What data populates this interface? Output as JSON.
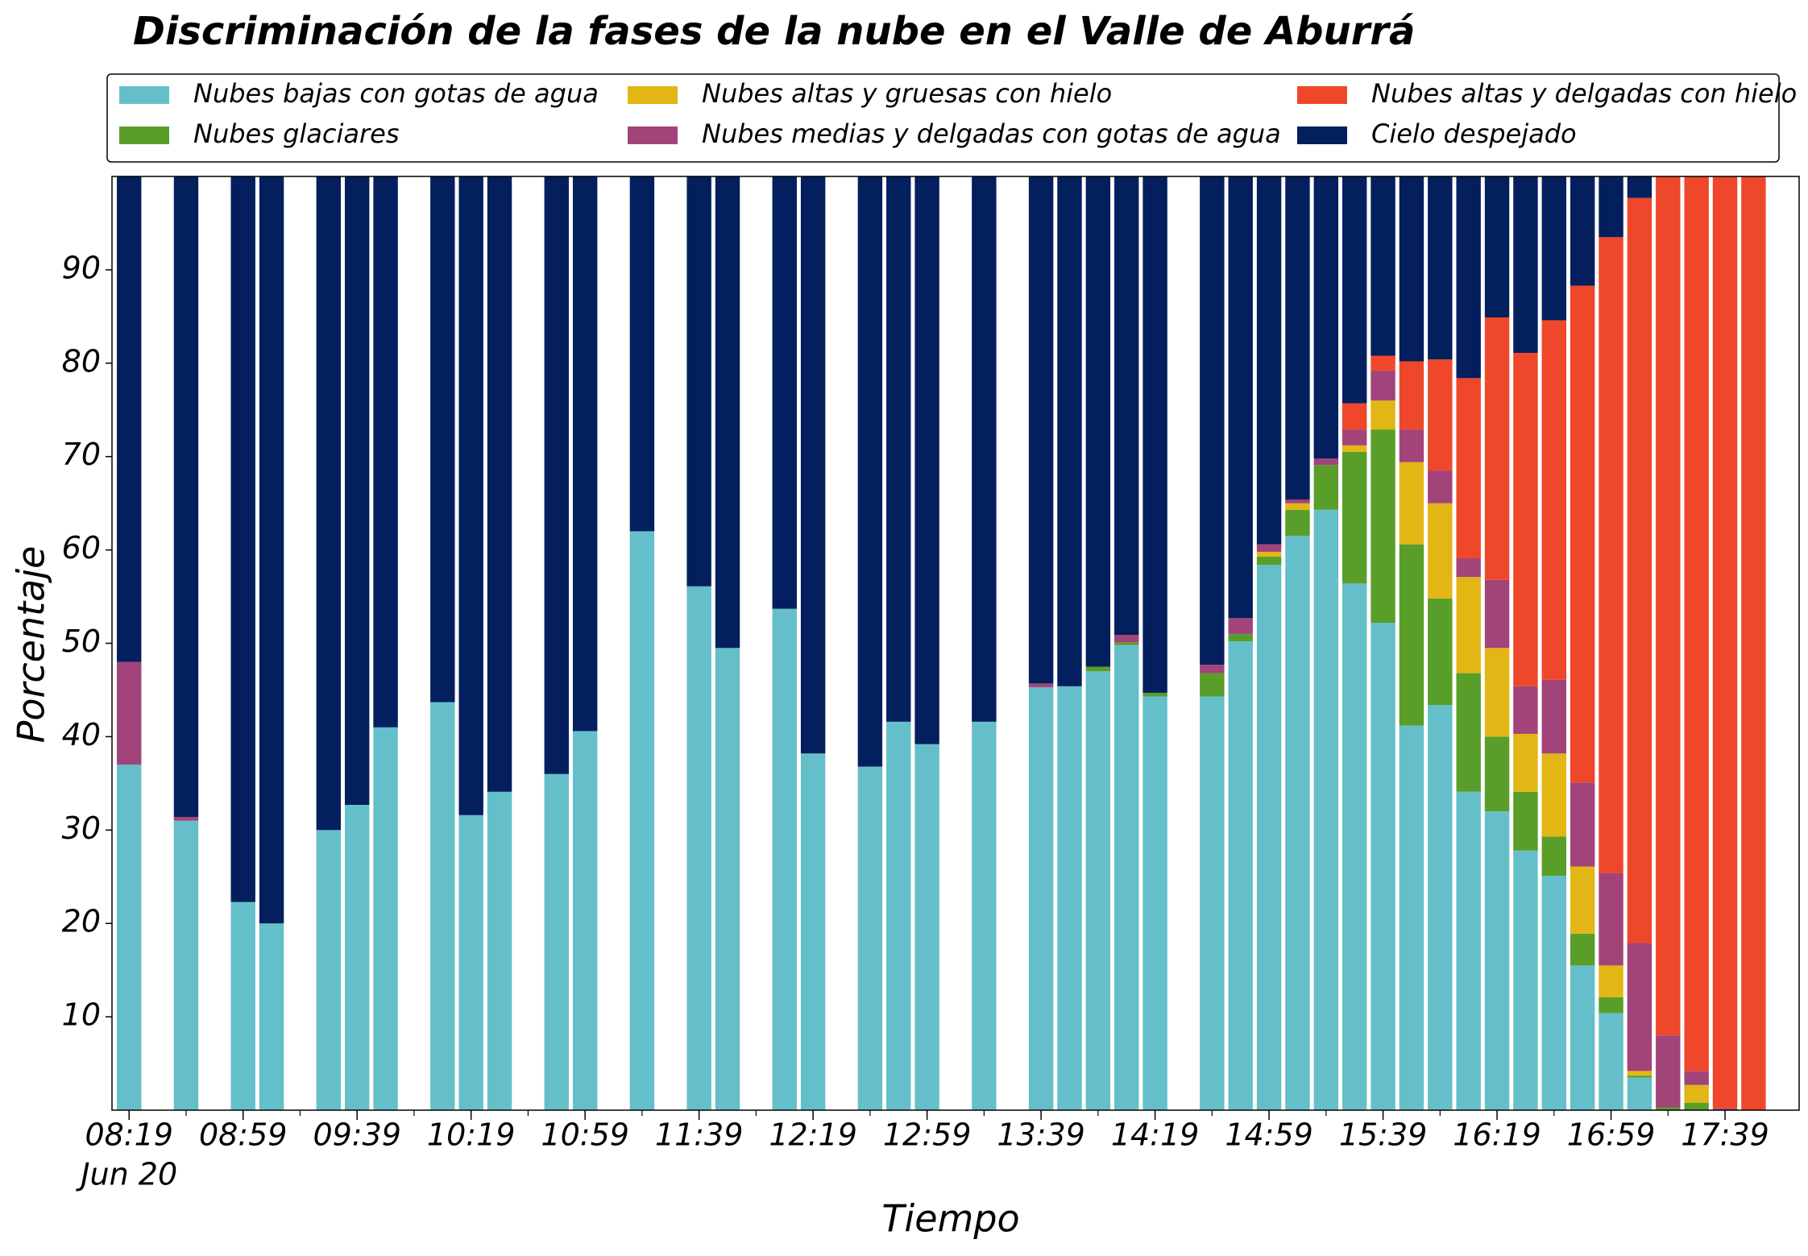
{
  "chart_data": {
    "type": "stacked-bar",
    "title": "Discriminación de la fases de la nube en el Valle de Aburrá",
    "x_label": "Tiempo",
    "y_label": "Porcentaje",
    "x_date_label": "Jun 20",
    "categories": [
      "08:19",
      null,
      null,
      null,
      "08:59",
      null,
      null,
      null,
      "09:39",
      null,
      null,
      null,
      "10:19",
      null,
      null,
      null,
      "10:59",
      null,
      null,
      null,
      "11:39",
      null,
      null,
      null,
      "12:19",
      null,
      null,
      null,
      "12:59",
      null,
      null,
      null,
      "13:39",
      null,
      null,
      null,
      "14:19",
      null,
      null,
      null,
      "14:59",
      null,
      null,
      null,
      "15:39",
      null,
      null,
      null,
      "16:19",
      null,
      null,
      null,
      "16:59",
      null,
      null,
      null,
      "17:39",
      null
    ],
    "ylim": [
      0,
      100
    ],
    "yticks": [
      10,
      20,
      30,
      40,
      50,
      60,
      70,
      80,
      90
    ],
    "legend": "upper center",
    "grid": false,
    "series": [
      {
        "name": "Nubes bajas con gotas de agua",
        "color": "#65bfca",
        "values": [
          37,
          null,
          31,
          null,
          22.3,
          20,
          null,
          30,
          32.7,
          41,
          null,
          43.7,
          31.6,
          34.1,
          null,
          36,
          40.6,
          null,
          62,
          null,
          56.1,
          49.5,
          null,
          53.7,
          38.2,
          null,
          36.8,
          41.6,
          39.2,
          null,
          41.6,
          null,
          45.3,
          45.4,
          47,
          49.8,
          44.3,
          null,
          44.3,
          50.2,
          58.4,
          61.5,
          64.3,
          56.4,
          52.2,
          41.2,
          43.4,
          34.1,
          32,
          27.8,
          25.1,
          15.5,
          10.4,
          3.5,
          0,
          0,
          0,
          0
        ]
      },
      {
        "name": "Nubes glaciares",
        "color": "#5a9e2a",
        "values": [
          0,
          null,
          0,
          null,
          0,
          0,
          null,
          0,
          0,
          0,
          null,
          0,
          0,
          0,
          null,
          0,
          0,
          null,
          0,
          null,
          0,
          0,
          null,
          0,
          0,
          null,
          0,
          0,
          0,
          null,
          0,
          null,
          0,
          0,
          0.5,
          0.3,
          0.4,
          null,
          2.5,
          0.8,
          0.9,
          2.8,
          4.8,
          14.1,
          20.7,
          19.4,
          11.4,
          12.7,
          8,
          6.3,
          4.2,
          3.4,
          1.7,
          0.2,
          0.3,
          0.8,
          0,
          0
        ]
      },
      {
        "name": "Nubes altas y gruesas con hielo",
        "color": "#e2b615",
        "values": [
          0,
          null,
          0,
          null,
          0,
          0,
          null,
          0,
          0,
          0,
          null,
          0,
          0,
          0,
          null,
          0,
          0,
          null,
          0,
          null,
          0,
          0,
          null,
          0,
          0,
          null,
          0,
          0,
          0,
          null,
          0,
          null,
          0,
          0,
          0,
          0,
          0,
          null,
          0,
          0,
          0.5,
          0.7,
          0,
          0.7,
          3.1,
          8.8,
          10.2,
          10.3,
          9.5,
          6.2,
          8.9,
          7.2,
          3.4,
          0.5,
          0,
          1.9,
          0,
          0
        ]
      },
      {
        "name": "Nubes medias y delgadas con gotas de agua",
        "color": "#a2437a",
        "values": [
          11,
          null,
          0.4,
          null,
          0,
          0,
          null,
          0,
          0,
          0,
          null,
          0,
          0,
          0,
          null,
          0,
          0,
          null,
          0,
          null,
          0,
          0,
          null,
          0,
          0,
          null,
          0,
          0,
          0,
          null,
          0,
          null,
          0.4,
          0,
          0,
          0.8,
          0,
          null,
          0.9,
          1.7,
          0.8,
          0.4,
          0.7,
          1.7,
          3.2,
          3.5,
          3.5,
          2,
          7.3,
          5.1,
          7.9,
          9,
          9.9,
          13.7,
          7.7,
          1.5,
          0.2,
          0
        ]
      },
      {
        "name": "Nubes altas y delgadas con hielo",
        "color": "#ef472a",
        "values": [
          0,
          null,
          0,
          null,
          0,
          0,
          null,
          0,
          0,
          0,
          null,
          0,
          0,
          0,
          null,
          0,
          0,
          null,
          0,
          null,
          0,
          0,
          null,
          0,
          0,
          null,
          0,
          0,
          0,
          null,
          0,
          null,
          0,
          0,
          0,
          0,
          0,
          null,
          0,
          0,
          0,
          0,
          0,
          2.8,
          1.6,
          7.3,
          11.9,
          19.3,
          28.1,
          35.7,
          38.5,
          53.2,
          68.1,
          79.8,
          92,
          95.8,
          99.8,
          100
        ]
      },
      {
        "name": "Cielo despejado",
        "color": "#031f5e",
        "values": [
          52,
          null,
          68.6,
          null,
          77.7,
          80,
          null,
          70,
          67.3,
          59,
          null,
          56.3,
          68.4,
          65.9,
          null,
          64,
          59.4,
          null,
          38,
          null,
          43.9,
          50.5,
          null,
          46.3,
          61.8,
          null,
          63.2,
          58.4,
          60.8,
          null,
          58.4,
          null,
          54.3,
          54.6,
          52.5,
          49.1,
          55.3,
          null,
          52.3,
          47.3,
          39.4,
          34.6,
          30.2,
          24.3,
          19.2,
          19.8,
          19.6,
          21.6,
          15.1,
          18.9,
          15.4,
          11.7,
          6.5,
          2.3,
          0,
          0,
          0,
          0
        ]
      }
    ]
  }
}
